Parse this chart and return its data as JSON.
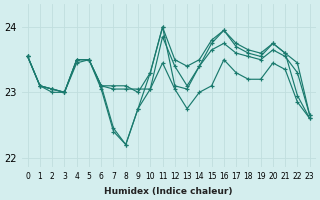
{
  "xlabel": "Humidex (Indice chaleur)",
  "bg_color": "#d4eeee",
  "grid_color": "#c0dede",
  "line_color": "#1a7a6e",
  "xlim": [
    -0.5,
    23.5
  ],
  "ylim": [
    21.85,
    24.35
  ],
  "yticks": [
    22,
    23,
    24
  ],
  "xticks": [
    0,
    1,
    2,
    3,
    4,
    5,
    6,
    7,
    8,
    9,
    10,
    11,
    12,
    13,
    14,
    15,
    16,
    17,
    18,
    19,
    20,
    21,
    22,
    23
  ],
  "lines": [
    [
      23.55,
      23.1,
      23.05,
      23.0,
      23.45,
      23.5,
      23.05,
      22.4,
      22.2,
      22.75,
      23.05,
      23.45,
      23.05,
      22.75,
      23.0,
      23.1,
      23.5,
      23.3,
      23.2,
      23.2,
      23.45,
      23.35,
      22.85,
      22.6
    ],
    [
      23.55,
      23.1,
      23.05,
      23.0,
      23.5,
      23.5,
      23.1,
      23.05,
      23.05,
      23.05,
      23.05,
      23.85,
      23.4,
      23.1,
      23.4,
      23.65,
      23.75,
      23.6,
      23.55,
      23.5,
      23.65,
      23.55,
      23.3,
      22.65
    ],
    [
      23.55,
      23.1,
      23.05,
      23.0,
      23.5,
      23.5,
      23.1,
      23.1,
      23.1,
      23.0,
      23.3,
      24.0,
      23.5,
      23.4,
      23.5,
      23.8,
      23.95,
      23.7,
      23.6,
      23.55,
      23.75,
      23.6,
      23.45,
      22.65
    ],
    [
      23.55,
      23.1,
      23.0,
      23.0,
      23.5,
      23.5,
      23.1,
      22.45,
      22.2,
      22.75,
      23.3,
      24.0,
      23.1,
      23.05,
      23.4,
      23.75,
      23.95,
      23.75,
      23.65,
      23.6,
      23.75,
      23.6,
      22.95,
      22.6
    ]
  ]
}
